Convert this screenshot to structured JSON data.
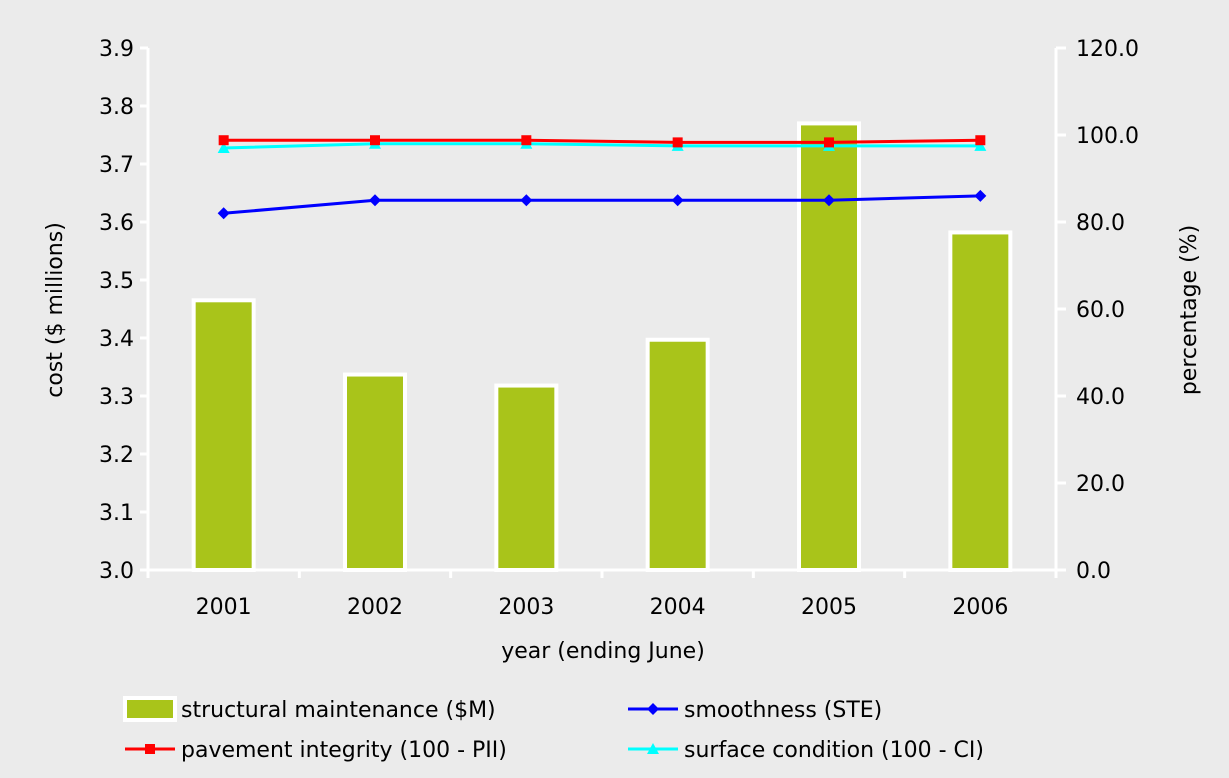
{
  "chart_data": {
    "type": "bar",
    "categories": [
      "2001",
      "2002",
      "2003",
      "2004",
      "2005",
      "2006"
    ],
    "xlabel": "year (ending June)",
    "ylabel": "cost ($ millions)",
    "y2label": "percentage (%)",
    "ylim": [
      3.0,
      3.9
    ],
    "y2lim": [
      0.0,
      120.0
    ],
    "yticks": [
      "3.0",
      "3.1",
      "3.2",
      "3.3",
      "3.4",
      "3.5",
      "3.6",
      "3.7",
      "3.8",
      "3.9"
    ],
    "y2ticks": [
      "0.0",
      "20.0",
      "40.0",
      "60.0",
      "80.0",
      "100.0",
      "120.0"
    ],
    "legend_position": "bottom",
    "series": [
      {
        "name": "structural maintenance ($M)",
        "kind": "bar",
        "axis": "left",
        "color": "#a9c41a",
        "values": [
          3.465,
          3.337,
          3.318,
          3.397,
          3.77,
          3.582
        ]
      },
      {
        "name": "smoothness (STE)",
        "kind": "line",
        "axis": "right",
        "marker": "diamond",
        "color": "#0000ff",
        "values": [
          82.0,
          85.0,
          85.0,
          85.0,
          85.0,
          86.0
        ]
      },
      {
        "name": "pavement integrity (100 - PII)",
        "kind": "line",
        "axis": "right",
        "marker": "square",
        "color": "#ff0000",
        "values": [
          98.8,
          98.8,
          98.8,
          98.3,
          98.3,
          98.8
        ]
      },
      {
        "name": "surface condition (100 - CI)",
        "kind": "line",
        "axis": "right",
        "marker": "triangle",
        "color": "#00ffff",
        "values": [
          97.0,
          98.0,
          98.0,
          97.5,
          97.5,
          97.5
        ]
      }
    ]
  }
}
